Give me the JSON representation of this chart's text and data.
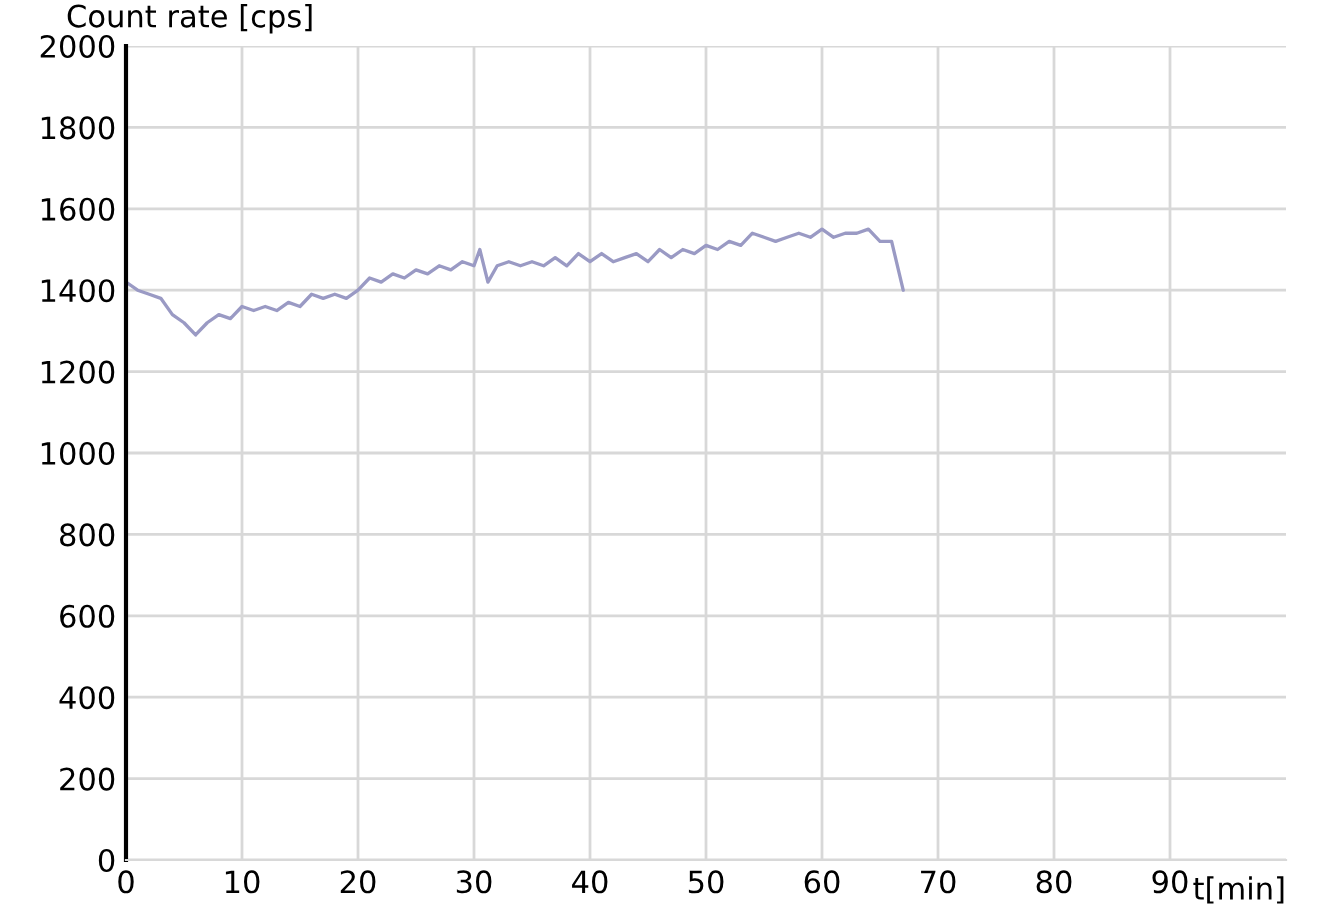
{
  "chart_data": {
    "type": "line",
    "ylabel": "Count rate [cps]",
    "xlabel": "t[min]",
    "x": [
      0,
      1,
      2,
      3,
      4,
      5,
      6,
      7,
      8,
      9,
      10,
      11,
      12,
      13,
      14,
      15,
      16,
      17,
      18,
      19,
      20,
      21,
      22,
      23,
      24,
      25,
      26,
      27,
      28,
      29,
      30,
      30.5,
      31.2,
      32,
      33,
      34,
      35,
      36,
      37,
      38,
      39,
      40,
      41,
      42,
      43,
      44,
      45,
      46,
      47,
      48,
      49,
      50,
      51,
      52,
      53,
      54,
      55,
      56,
      57,
      58,
      59,
      60,
      61,
      62,
      63,
      64,
      65,
      66,
      67
    ],
    "series": [
      {
        "color": "#9a9ac4",
        "values": [
          1420,
          1400,
          1390,
          1380,
          1340,
          1320,
          1290,
          1320,
          1340,
          1330,
          1360,
          1350,
          1360,
          1350,
          1370,
          1360,
          1390,
          1380,
          1390,
          1380,
          1400,
          1430,
          1420,
          1440,
          1430,
          1450,
          1440,
          1460,
          1450,
          1470,
          1460,
          1500,
          1420,
          1460,
          1470,
          1460,
          1470,
          1460,
          1480,
          1460,
          1490,
          1470,
          1490,
          1470,
          1480,
          1490,
          1470,
          1500,
          1480,
          1500,
          1490,
          1510,
          1500,
          1520,
          1510,
          1540,
          1530,
          1520,
          1530,
          1540,
          1530,
          1550,
          1530,
          1540,
          1540,
          1550,
          1520,
          1520,
          1400
        ]
      }
    ],
    "xlim": [
      0,
      100
    ],
    "xticks": [
      0,
      10,
      20,
      30,
      40,
      50,
      60,
      70,
      80,
      90
    ],
    "ylim": [
      0,
      2000
    ],
    "yticks": [
      0,
      200,
      400,
      600,
      800,
      1000,
      1200,
      1400,
      1600,
      1800,
      2000
    ],
    "grid": true,
    "marker": "none",
    "line_style": "solid"
  }
}
